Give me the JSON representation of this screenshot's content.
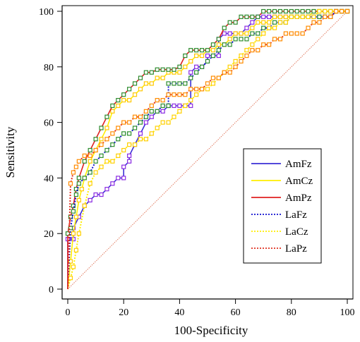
{
  "chart_data": {
    "type": "line",
    "title": "",
    "xlabel": "100-Specificity",
    "ylabel": "Sensitivity",
    "xlim": [
      0,
      100
    ],
    "ylim": [
      0,
      100
    ],
    "xticks": [
      "0",
      "20",
      "40",
      "60",
      "80",
      "100"
    ],
    "yticks": [
      "0",
      "20",
      "40",
      "60",
      "80",
      "100"
    ],
    "grid": false,
    "legend_position": "right",
    "reference_line": {
      "x": [
        0,
        100
      ],
      "y": [
        0,
        100
      ],
      "color": "#e07a5f",
      "style": "dotted"
    },
    "series": [
      {
        "name": "AmFz",
        "color": "#3b2fd6",
        "style": "solid",
        "marker_color": "#8a2be2",
        "x": [
          0,
          0,
          2,
          2,
          4,
          6,
          8,
          10,
          12,
          14,
          16,
          18,
          20,
          20,
          22,
          22,
          24,
          26,
          28,
          30,
          32,
          34,
          36,
          36,
          38,
          40,
          42,
          44,
          44,
          46,
          48,
          50,
          50,
          52,
          54,
          54,
          56,
          58,
          60,
          62,
          64,
          66,
          68,
          70,
          72,
          74,
          76,
          78,
          80,
          82,
          84,
          86,
          88,
          90,
          92,
          94,
          96,
          98,
          100
        ],
        "y": [
          0,
          18,
          18,
          22,
          26,
          30,
          32,
          34,
          34,
          36,
          38,
          40,
          40,
          44,
          46,
          48,
          52,
          56,
          60,
          62,
          64,
          64,
          66,
          66,
          66,
          66,
          66,
          66,
          78,
          80,
          80,
          82,
          84,
          84,
          84,
          90,
          92,
          92,
          92,
          92,
          94,
          96,
          98,
          98,
          98,
          98,
          98,
          98,
          98,
          98,
          98,
          98,
          98,
          98,
          98,
          98,
          100,
          100,
          100
        ]
      },
      {
        "name": "AmCz",
        "color": "#ffee00",
        "style": "solid",
        "marker_color": "#ffc800",
        "x": [
          0,
          1,
          2,
          3,
          4,
          5,
          6,
          8,
          10,
          12,
          14,
          16,
          18,
          20,
          22,
          24,
          26,
          28,
          30,
          32,
          34,
          36,
          38,
          40,
          42,
          44,
          46,
          48,
          50,
          52,
          54,
          56,
          58,
          60,
          62,
          64,
          66,
          68,
          70,
          72,
          74,
          76,
          78,
          80,
          82,
          84,
          86,
          88,
          90,
          92,
          94,
          96,
          98,
          100
        ],
        "y": [
          0,
          10,
          20,
          26,
          32,
          36,
          40,
          46,
          50,
          54,
          58,
          64,
          66,
          68,
          68,
          70,
          72,
          74,
          74,
          76,
          76,
          78,
          78,
          78,
          80,
          82,
          84,
          84,
          86,
          86,
          88,
          88,
          90,
          92,
          92,
          92,
          94,
          96,
          96,
          96,
          98,
          98,
          98,
          98,
          98,
          98,
          98,
          100,
          100,
          100,
          100,
          100,
          100,
          100
        ]
      },
      {
        "name": "AmPz",
        "color": "#e02020",
        "style": "solid",
        "marker_color": "#2e8b2e",
        "x": [
          0,
          0,
          1,
          2,
          3,
          4,
          6,
          8,
          10,
          12,
          14,
          16,
          18,
          20,
          22,
          24,
          26,
          28,
          30,
          32,
          34,
          36,
          38,
          40,
          42,
          44,
          46,
          48,
          50,
          52,
          54,
          56,
          58,
          60,
          62,
          64,
          66,
          68,
          70,
          72,
          74,
          76,
          78,
          80,
          82,
          84,
          86,
          88,
          90,
          92,
          94,
          96,
          98,
          100
        ],
        "y": [
          0,
          20,
          26,
          30,
          36,
          40,
          46,
          50,
          54,
          58,
          62,
          66,
          68,
          70,
          72,
          74,
          76,
          78,
          78,
          79,
          79,
          79,
          79,
          80,
          84,
          86,
          86,
          86,
          86,
          88,
          90,
          94,
          96,
          96,
          98,
          98,
          98,
          98,
          100,
          100,
          100,
          100,
          100,
          100,
          100,
          100,
          100,
          100,
          100,
          100,
          100,
          100,
          100,
          100
        ]
      },
      {
        "name": "LaFz",
        "color": "#1010d0",
        "style": "dotted",
        "marker_color": "#2f8f2f",
        "x": [
          0,
          1,
          2,
          3,
          4,
          6,
          8,
          10,
          12,
          14,
          16,
          18,
          20,
          22,
          24,
          26,
          28,
          30,
          32,
          34,
          36,
          36,
          38,
          40,
          42,
          44,
          46,
          48,
          50,
          52,
          54,
          56,
          58,
          60,
          62,
          64,
          66,
          68,
          70,
          72,
          74,
          76,
          78,
          80,
          82,
          84,
          86,
          88,
          90,
          92,
          94,
          96,
          98,
          100
        ],
        "y": [
          0,
          22,
          28,
          34,
          38,
          40,
          42,
          46,
          48,
          50,
          52,
          54,
          56,
          56,
          58,
          60,
          62,
          64,
          64,
          66,
          66,
          74,
          74,
          74,
          74,
          76,
          78,
          80,
          82,
          84,
          86,
          88,
          88,
          90,
          90,
          90,
          92,
          92,
          94,
          94,
          96,
          96,
          96,
          98,
          98,
          98,
          98,
          98,
          98,
          98,
          98,
          100,
          100,
          100
        ]
      },
      {
        "name": "LaCz",
        "color": "#ffee00",
        "style": "dotted",
        "marker_color": "#ffd000",
        "x": [
          0,
          1,
          2,
          3,
          4,
          6,
          8,
          10,
          12,
          14,
          16,
          18,
          20,
          22,
          24,
          26,
          28,
          30,
          32,
          34,
          36,
          38,
          40,
          42,
          44,
          46,
          48,
          50,
          52,
          54,
          56,
          58,
          60,
          62,
          64,
          66,
          68,
          70,
          72,
          74,
          76,
          78,
          80,
          82,
          84,
          86,
          88,
          90,
          92,
          94,
          96,
          98,
          100
        ],
        "y": [
          0,
          4,
          8,
          14,
          20,
          30,
          38,
          42,
          44,
          46,
          46,
          48,
          50,
          52,
          52,
          54,
          54,
          56,
          58,
          60,
          60,
          62,
          64,
          66,
          68,
          70,
          72,
          72,
          74,
          76,
          78,
          80,
          82,
          84,
          86,
          88,
          90,
          92,
          94,
          94,
          96,
          96,
          98,
          98,
          98,
          98,
          98,
          100,
          100,
          100,
          100,
          100,
          100
        ]
      },
      {
        "name": "LaPz",
        "color": "#e03020",
        "style": "dotted",
        "marker_color": "#ff8c00",
        "x": [
          0,
          1,
          2,
          3,
          4,
          6,
          8,
          10,
          12,
          14,
          16,
          18,
          20,
          22,
          24,
          26,
          28,
          30,
          32,
          34,
          36,
          38,
          40,
          42,
          44,
          46,
          48,
          50,
          52,
          54,
          56,
          58,
          60,
          62,
          64,
          66,
          68,
          70,
          72,
          74,
          76,
          78,
          80,
          82,
          84,
          86,
          88,
          90,
          92,
          94,
          96,
          98,
          100
        ],
        "y": [
          0,
          38,
          42,
          44,
          46,
          48,
          48,
          50,
          52,
          54,
          56,
          58,
          60,
          60,
          62,
          62,
          64,
          66,
          68,
          68,
          70,
          70,
          70,
          70,
          72,
          72,
          72,
          74,
          76,
          76,
          78,
          78,
          80,
          82,
          84,
          86,
          86,
          88,
          88,
          90,
          90,
          92,
          92,
          92,
          92,
          94,
          96,
          96,
          98,
          98,
          100,
          100,
          100
        ]
      }
    ]
  }
}
